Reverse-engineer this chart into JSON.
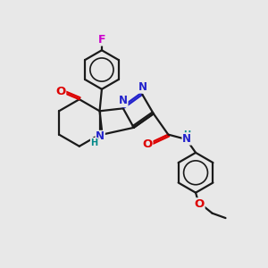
{
  "bg_color": "#e8e8e8",
  "bond_color": "#1a1a1a",
  "bond_width": 1.6,
  "atom_colors": {
    "N": "#2222cc",
    "O": "#dd0000",
    "F": "#cc00cc",
    "H": "#008888"
  },
  "font_size": 8.5,
  "fig_size": [
    3.0,
    3.0
  ],
  "dpi": 100
}
